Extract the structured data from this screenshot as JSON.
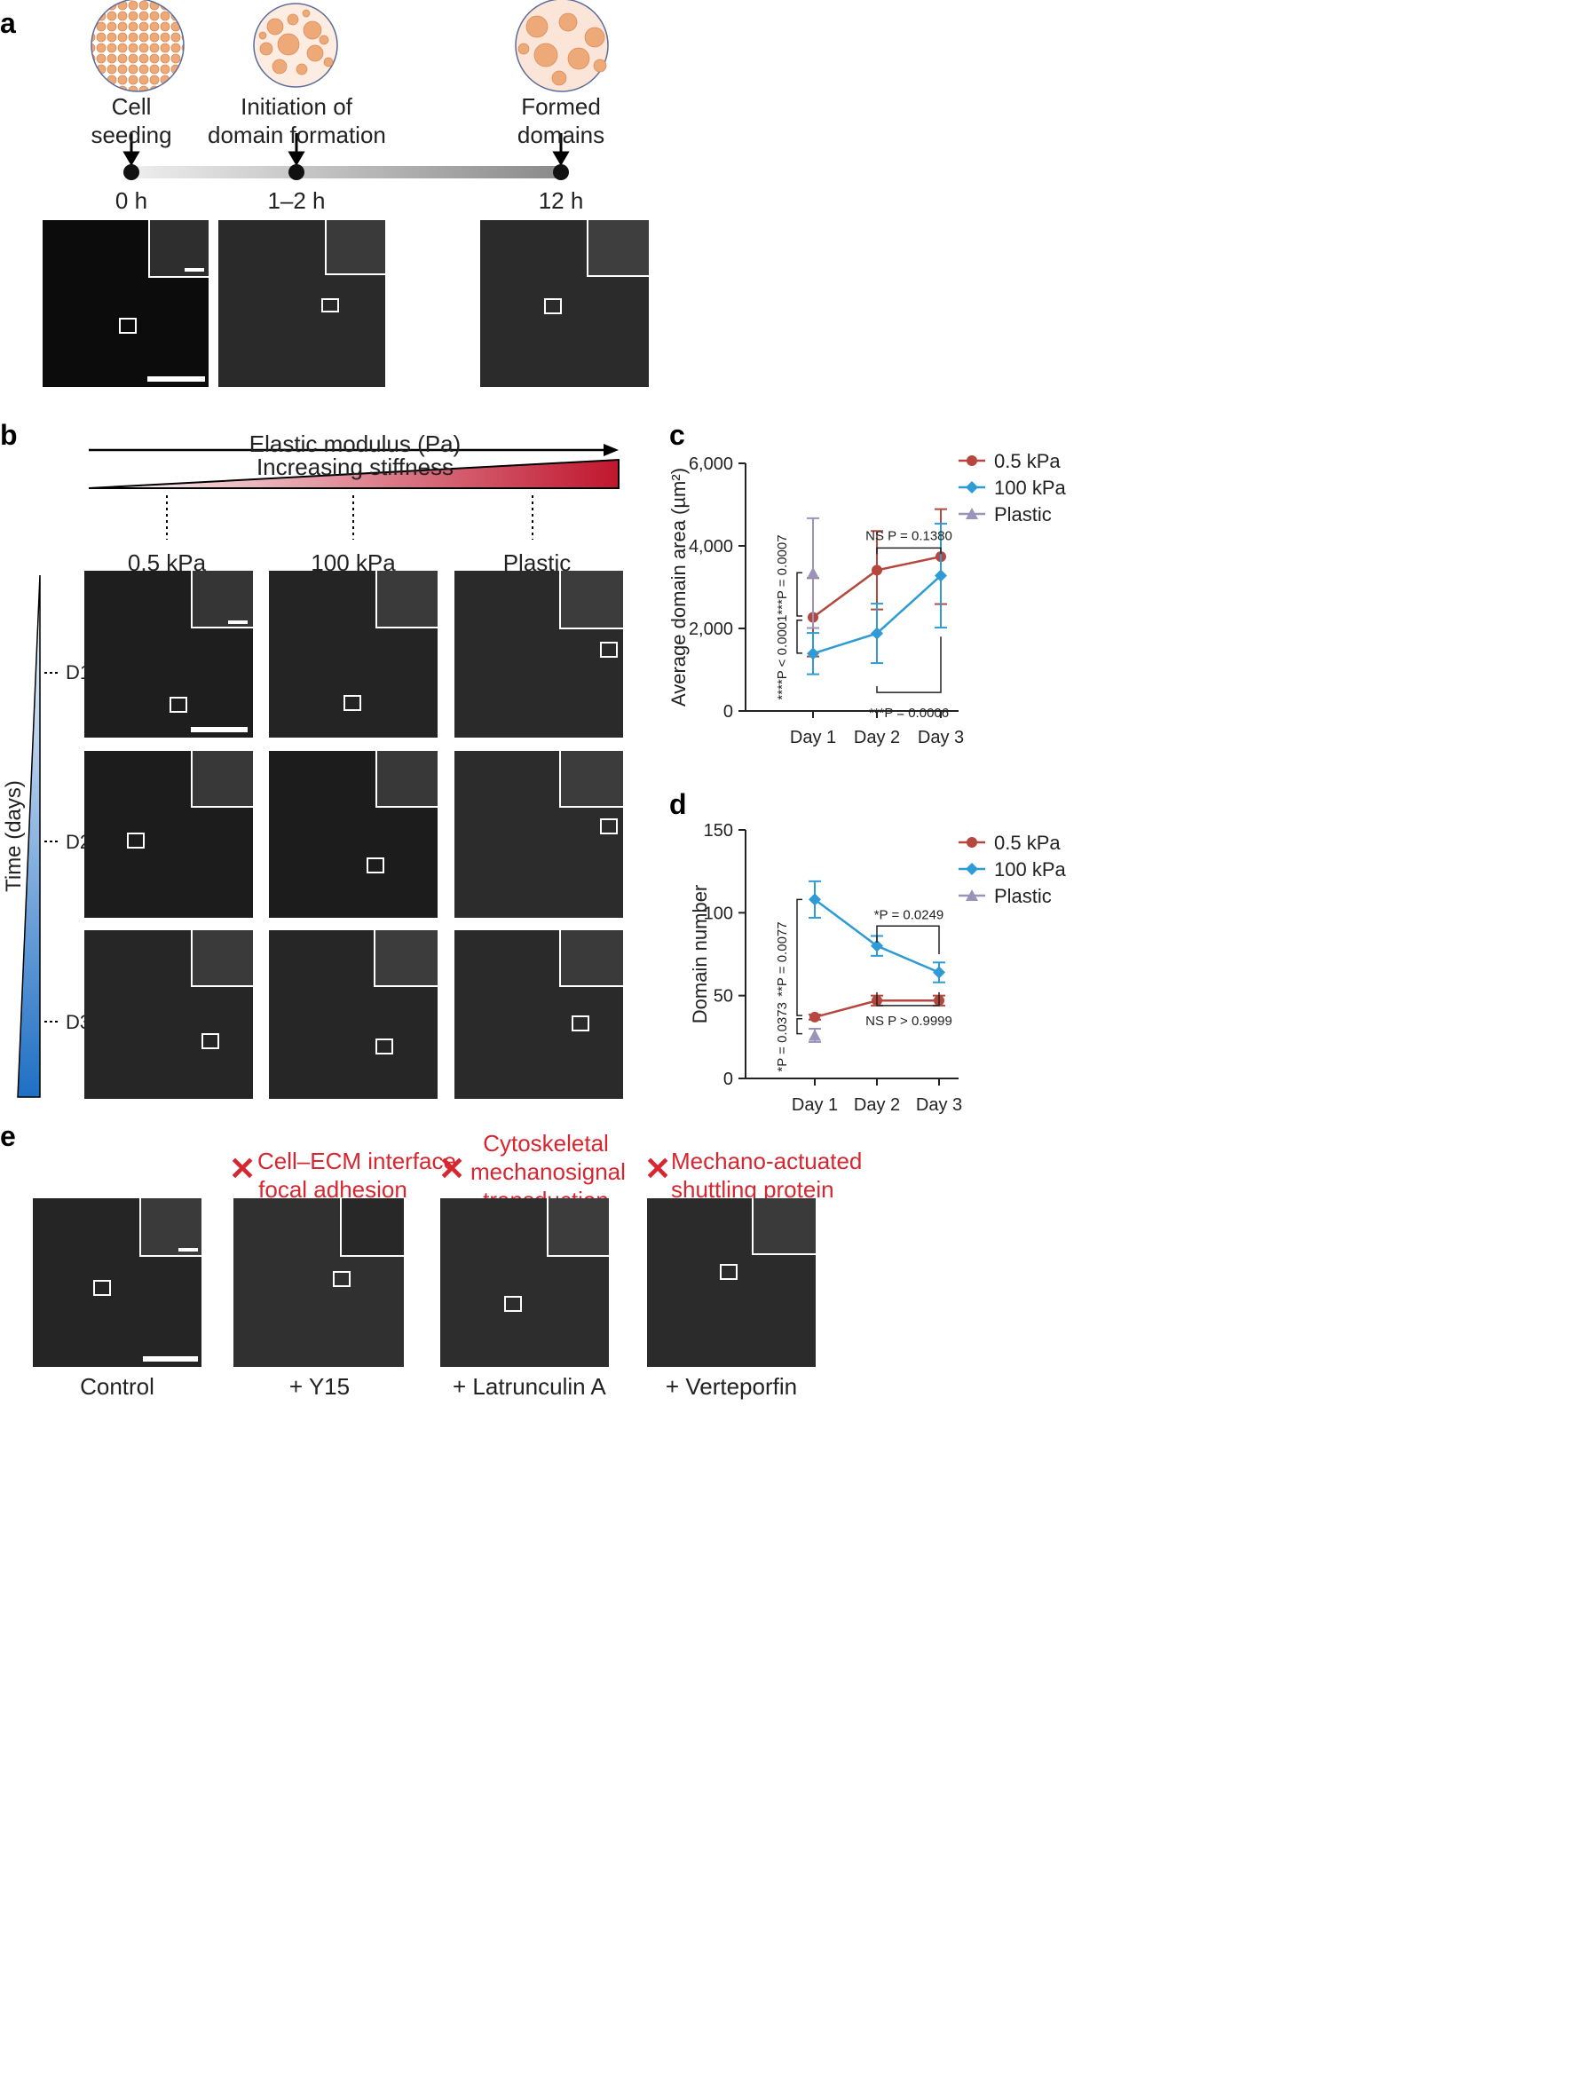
{
  "panel_labels": {
    "a": "a",
    "b": "b",
    "c": "c",
    "d": "d",
    "e": "e"
  },
  "panel_a": {
    "stages": [
      {
        "label_line1": "Cell",
        "label_line2": "seeding",
        "time": "0 h"
      },
      {
        "label_line1": "Initiation of",
        "label_line2": "domain formation",
        "time": "1–2 h"
      },
      {
        "label_line1": "Formed",
        "label_line2": "domains",
        "time": "12 h"
      }
    ]
  },
  "panel_b": {
    "arrow_label": "Elastic modulus (Pa)",
    "wedge_label": "Increasing stiffness",
    "columns": [
      "0.5 kPa",
      "100 kPa",
      "Plastic"
    ],
    "time_axis_label": "Time (days)",
    "rows": [
      "D1",
      "D2",
      "D3"
    ],
    "colors": {
      "stiff_start": "#ffffff",
      "stiff_end": "#c0162e",
      "time_start": "#ffffff",
      "time_end": "#1f6fc4"
    }
  },
  "panel_c": {
    "ylabel": "Average domain area (µm²)",
    "yticks": [
      "0",
      "2,000",
      "4,000",
      "6,000"
    ],
    "xticks": [
      "Day 1",
      "Day 2",
      "Day 3"
    ],
    "legend": [
      "0.5 kPa",
      "100 kPa",
      "Plastic"
    ],
    "annotations": {
      "top": "NS P = 0.1380",
      "bottom": "***P = 0.0006",
      "left1": "****P < 0.0001",
      "left2": "***P = 0.0007"
    }
  },
  "panel_d": {
    "ylabel": "Domain number",
    "yticks": [
      "0",
      "50",
      "100",
      "150"
    ],
    "xticks": [
      "Day 1",
      "Day 2",
      "Day 3"
    ],
    "legend": [
      "0.5 kPa",
      "100 kPa",
      "Plastic"
    ],
    "annotations": {
      "top": "*P = 0.0249",
      "bottom": "NS P > 0.9999",
      "left1": "*P = 0.0373",
      "left2": "**P = 0.0077"
    }
  },
  "panel_e": {
    "conditions": [
      {
        "name": "Control",
        "inhibits": ""
      },
      {
        "name": "+ Y15",
        "inhibits_line1": "Cell–ECM interface",
        "inhibits_line2": "focal adhesion"
      },
      {
        "name": "+ Latrunculin A",
        "inhibits_line1": "Cytoskeletal",
        "inhibits_line2": "mechanosignal",
        "inhibits_line3": "transduction"
      },
      {
        "name": "+ Verteporfin",
        "inhibits_line1": "Mechano-actuated",
        "inhibits_line2": "shuttling protein"
      }
    ],
    "cross_symbol": "✕"
  },
  "chart_data": [
    {
      "type": "line",
      "title": "",
      "xlabel": "",
      "ylabel": "Average domain area (µm²)",
      "categories": [
        "Day 1",
        "Day 2",
        "Day 3"
      ],
      "ylim": [
        0,
        6000
      ],
      "series": [
        {
          "name": "0.5 kPa",
          "color": "#b5473f",
          "values": [
            2270,
            3410,
            3740
          ],
          "err": [
            950,
            950,
            1150
          ]
        },
        {
          "name": "100 kPa",
          "color": "#2e9bd6",
          "values": [
            1390,
            1880,
            3280
          ],
          "err": [
            500,
            720,
            1260
          ]
        },
        {
          "name": "Plastic",
          "color": "#9a94bb",
          "values": [
            3340,
            null,
            null
          ],
          "err": [
            1330,
            null,
            null
          ]
        }
      ],
      "legend": "top-right"
    },
    {
      "type": "line",
      "title": "",
      "xlabel": "",
      "ylabel": "Domain number",
      "categories": [
        "Day 1",
        "Day 2",
        "Day 3"
      ],
      "ylim": [
        0,
        150
      ],
      "series": [
        {
          "name": "0.5 kPa",
          "color": "#b5473f",
          "values": [
            37,
            47,
            47
          ],
          "err": [
            1.5,
            3,
            3
          ]
        },
        {
          "name": "100 kPa",
          "color": "#2e9bd6",
          "values": [
            108,
            80,
            64
          ],
          "err": [
            11,
            6,
            6
          ]
        },
        {
          "name": "Plastic",
          "color": "#9a94bb",
          "values": [
            26,
            null,
            null
          ],
          "err": [
            4,
            null,
            null
          ]
        }
      ],
      "legend": "top-right"
    }
  ]
}
